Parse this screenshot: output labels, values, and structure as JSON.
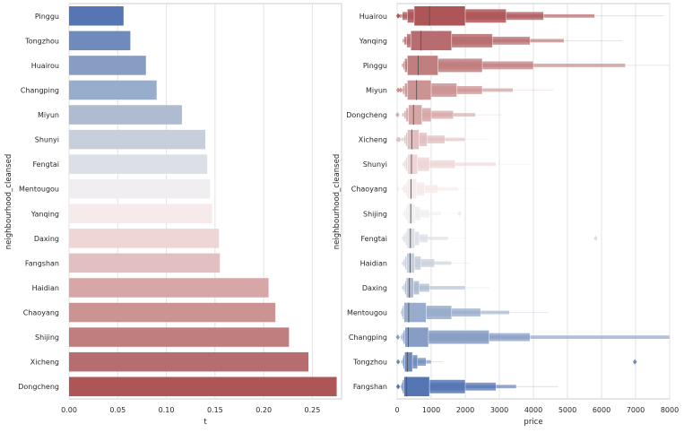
{
  "chart_data": [
    {
      "type": "bar",
      "orientation": "horizontal",
      "xlabel": "t",
      "ylabel": "neighbourhood_cleansed",
      "xlim": [
        0,
        0.28
      ],
      "xticks": [
        "0.00",
        "0.05",
        "0.10",
        "0.15",
        "0.20",
        "0.25"
      ],
      "grid": true,
      "palette": "vlag",
      "categories": [
        "Pinggu",
        "Tongzhou",
        "Huairou",
        "Changping",
        "Miyun",
        "Shunyi",
        "Fengtai",
        "Mentougou",
        "Yanqing",
        "Daxing",
        "Fangshan",
        "Haidian",
        "Chaoyang",
        "Shijing",
        "Xicheng",
        "Dongcheng"
      ],
      "values": [
        0.056,
        0.063,
        0.079,
        0.09,
        0.116,
        0.14,
        0.142,
        0.145,
        0.147,
        0.154,
        0.155,
        0.205,
        0.212,
        0.226,
        0.246,
        0.275
      ],
      "colors": [
        "#5575b3",
        "#6e8bbc",
        "#879dc4",
        "#98accb",
        "#aebbd1",
        "#c8cfdc",
        "#dddfe6",
        "#f1eef1",
        "#f7eaea",
        "#eed6d6",
        "#e2c0c1",
        "#d7a7a8",
        "#cc9393",
        "#c17e7f",
        "#b76d6f",
        "#ae5558"
      ]
    },
    {
      "type": "boxenplot",
      "orientation": "horizontal",
      "xlabel": "price",
      "ylabel": "neighbourhood_cleansed",
      "xlim": [
        0,
        8000
      ],
      "xticks": [
        "0",
        "1000",
        "2000",
        "3000",
        "4000",
        "5000",
        "6000",
        "7000",
        "8000"
      ],
      "grid": true,
      "categories": [
        "Huairou",
        "Yanqing",
        "Pinggu",
        "Miyun",
        "Dongcheng",
        "Xicheng",
        "Shunyi",
        "Chaoyang",
        "Shijing",
        "Fengtai",
        "Haidian",
        "Daxing",
        "Mentougou",
        "Changping",
        "Tongzhou",
        "Fangshan"
      ],
      "colors": [
        "#ae5558",
        "#b76d6f",
        "#c17e7f",
        "#cc9393",
        "#d7a7a8",
        "#e2c0c1",
        "#eed6d6",
        "#f7eaea",
        "#f1eef1",
        "#dddfe6",
        "#c8cfdc",
        "#aebbd1",
        "#98accb",
        "#879dc4",
        "#6e8bbc",
        "#5575b3"
      ],
      "series": [
        {
          "name": "Huairou",
          "median": 950,
          "boxes": [
            [
              500,
              2000
            ],
            [
              300,
              3200
            ],
            [
              150,
              4300
            ],
            [
              60,
              5800
            ]
          ],
          "outliers": [
            30
          ]
        },
        {
          "name": "Yanqing",
          "median": 700,
          "boxes": [
            [
              400,
              1600
            ],
            [
              280,
              2800
            ],
            [
              200,
              3900
            ],
            [
              150,
              4900
            ]
          ],
          "outliers": []
        },
        {
          "name": "Pinggu",
          "median": 620,
          "boxes": [
            [
              300,
              1200
            ],
            [
              220,
              2500
            ],
            [
              180,
              4000
            ],
            [
              130,
              6700
            ]
          ],
          "outliers": []
        },
        {
          "name": "Miyun",
          "median": 570,
          "boxes": [
            [
              300,
              1000
            ],
            [
              220,
              1750
            ],
            [
              160,
              2500
            ],
            [
              120,
              3400
            ]
          ],
          "outliers": [
            30,
            100
          ]
        },
        {
          "name": "Dongcheng",
          "median": 480,
          "boxes": [
            [
              330,
              730
            ],
            [
              260,
              1000
            ],
            [
              200,
              1650
            ],
            [
              140,
              2300
            ]
          ],
          "outliers": [
            10
          ]
        },
        {
          "name": "Xicheng",
          "median": 430,
          "boxes": [
            [
              300,
              640
            ],
            [
              250,
              880
            ],
            [
              200,
              1400
            ],
            [
              120,
              2000
            ]
          ],
          "outliers": [
            20,
            60
          ]
        },
        {
          "name": "Shunyi",
          "median": 420,
          "boxes": [
            [
              310,
              600
            ],
            [
              250,
              950
            ],
            [
              200,
              1700
            ],
            [
              150,
              2900
            ]
          ],
          "outliers": []
        },
        {
          "name": "Chaoyang",
          "median": 410,
          "boxes": [
            [
              300,
              570
            ],
            [
              250,
              800
            ],
            [
              180,
              1200
            ],
            [
              120,
              1800
            ]
          ],
          "outliers": [
            20
          ]
        },
        {
          "name": "Shijing",
          "median": 400,
          "boxes": [
            [
              300,
              520
            ],
            [
              250,
              680
            ],
            [
              200,
              950
            ],
            [
              150,
              1300
            ]
          ],
          "outliers": [
            1830
          ]
        },
        {
          "name": "Fengtai",
          "median": 390,
          "boxes": [
            [
              290,
              520
            ],
            [
              240,
              650
            ],
            [
              180,
              900
            ],
            [
              130,
              1500
            ]
          ],
          "outliers": [
            5830
          ]
        },
        {
          "name": "Haidian",
          "median": 380,
          "boxes": [
            [
              280,
              510
            ],
            [
              230,
              700
            ],
            [
              180,
              1100
            ],
            [
              130,
              1600
            ]
          ],
          "outliers": []
        },
        {
          "name": "Daxing",
          "median": 360,
          "boxes": [
            [
              270,
              480
            ],
            [
              230,
              650
            ],
            [
              190,
              950
            ],
            [
              140,
              2000
            ]
          ],
          "outliers": []
        },
        {
          "name": "Mentougou",
          "median": 340,
          "boxes": [
            [
              200,
              850
            ],
            [
              160,
              1600
            ],
            [
              130,
              2450
            ],
            [
              100,
              3300
            ]
          ],
          "outliers": []
        },
        {
          "name": "Changping",
          "median": 330,
          "boxes": [
            [
              230,
              920
            ],
            [
              180,
              2700
            ],
            [
              140,
              3900
            ],
            [
              100,
              8000
            ]
          ],
          "outliers": [
            20
          ]
        },
        {
          "name": "Tongzhou",
          "median": 300,
          "boxes": [
            [
              220,
              450
            ],
            [
              180,
              600
            ],
            [
              150,
              850
            ],
            [
              110,
              1000
            ]
          ],
          "outliers": [
            30,
            6980
          ]
        },
        {
          "name": "Fangshan",
          "median": 280,
          "boxes": [
            [
              200,
              950
            ],
            [
              160,
              2000
            ],
            [
              130,
              2900
            ],
            [
              100,
              3500
            ]
          ],
          "outliers": [
            30
          ]
        }
      ]
    }
  ]
}
